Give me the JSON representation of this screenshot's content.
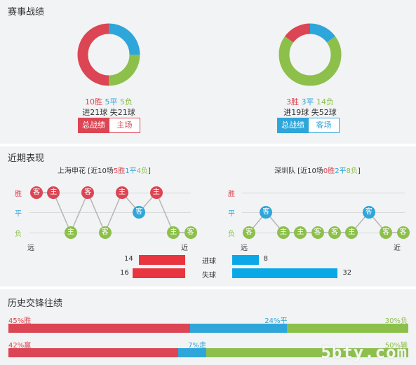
{
  "section1": {
    "title": "赛事战绩",
    "left": {
      "win": "10胜",
      "draw": "5平",
      "loss": "5负",
      "goals_for": "进21球",
      "goals_against": "失21球",
      "record": {
        "win": 10,
        "draw": 5,
        "loss": 5
      },
      "tab_active": "总战绩",
      "tab_other": "主场"
    },
    "right": {
      "win": "3胜",
      "draw": "3平",
      "loss": "14负",
      "goals_for": "进19球",
      "goals_against": "失52球",
      "record": {
        "win": 3,
        "draw": 3,
        "loss": 14
      },
      "tab_active": "总战绩",
      "tab_other": "客场"
    }
  },
  "section2": {
    "title": "近期表现",
    "left": {
      "team": "上海申花",
      "summary_prefix": "[近10场",
      "win": "5胜",
      "draw": "1平",
      "loss": "4负",
      "summary_suffix": "]",
      "results": [
        "w",
        "w",
        "l",
        "w",
        "l",
        "w",
        "d",
        "w",
        "l",
        "l"
      ],
      "venues": [
        "客",
        "主",
        "主",
        "客",
        "客",
        "主",
        "客",
        "主",
        "主",
        "客"
      ]
    },
    "right": {
      "team": "深圳队",
      "summary_prefix": "[近10场",
      "win": "0胜",
      "draw": "2平",
      "loss": "8负",
      "summary_suffix": "]",
      "results": [
        "l",
        "d",
        "l",
        "l",
        "l",
        "l",
        "l",
        "d",
        "l",
        "l"
      ],
      "venues": [
        "客",
        "客",
        "主",
        "主",
        "客",
        "客",
        "主",
        "客",
        "客",
        "客"
      ]
    },
    "row_labels": {
      "win": "胜",
      "draw": "平",
      "loss": "负"
    },
    "far_label": "远",
    "near_label": "近",
    "goals": {
      "for_label": "进球",
      "against_label": "失球",
      "left_for": "14",
      "left_against": "16",
      "right_for": "8",
      "right_against": "32",
      "values": {
        "left_for": 14,
        "left_against": 16,
        "right_for": 8,
        "right_against": 32
      }
    }
  },
  "section3": {
    "title": "历史交锋往绩",
    "row1": {
      "win_label": "45%胜",
      "draw_label": "24%平",
      "loss_label": "30%负",
      "win": 45,
      "draw": 24,
      "loss": 30
    },
    "row2": {
      "win_label": "42%赢",
      "draw_label": "7%走",
      "loss_label": "50%输",
      "win": 42,
      "draw": 7,
      "loss": 50
    }
  },
  "watermark": "5bty.com",
  "colors": {
    "win": "#dc4553",
    "draw": "#2fa6da",
    "loss": "#8cc04b",
    "for_bar": "#e8353f",
    "against_bar": "#0ba8e8"
  }
}
